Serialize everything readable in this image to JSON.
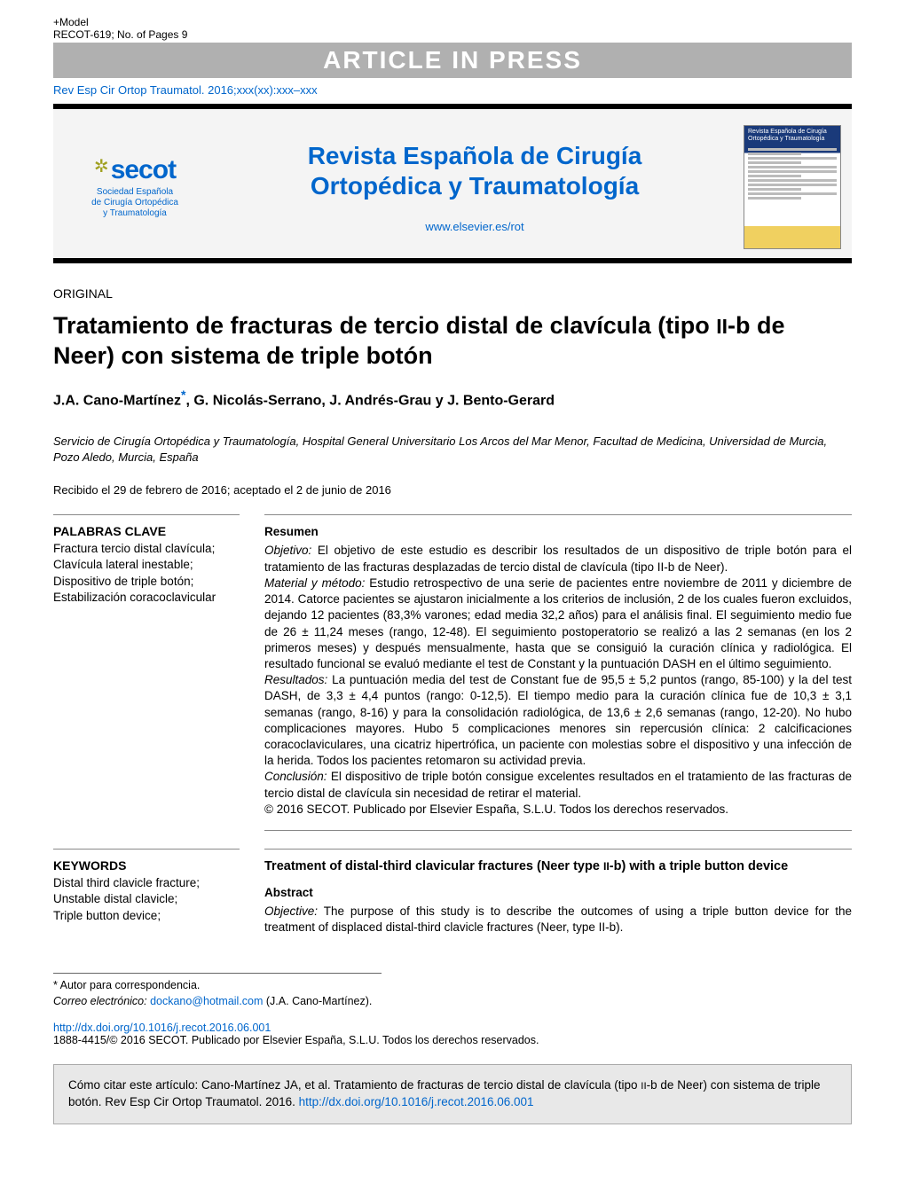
{
  "model_tag": "+Model",
  "model_ref": "RECOT-619;   No. of Pages 9",
  "banner": "ARTICLE IN PRESS",
  "short_cite": "Rev Esp Cir Ortop Traumatol. 2016;xxx(xx):xxx–xxx",
  "logo_text": "secot",
  "logo_subtitle": "Sociedad Española\nde Cirugía Ortopédica\ny Traumatología",
  "journal_title_1": "Revista Española de Cirugía",
  "journal_title_2": "Ortopédica y Traumatología",
  "journal_url": "www.elsevier.es/rot",
  "cover_heading": "Revista Española de Cirugía Ortopédica y Traumatología",
  "section_label": "ORIGINAL",
  "article_title": "Tratamiento de fracturas de tercio distal de clavícula (tipo II-b de Neer) con sistema de triple botón",
  "authors_html": "J.A. Cano-Martínez*, G. Nicolás-Serrano, J. Andrés-Grau y J. Bento-Gerard",
  "author_1": "J.A. Cano-Martínez",
  "author_2": "G. Nicolás-Serrano",
  "author_3": "J. Andrés-Grau",
  "author_4": "J. Bento-Gerard",
  "affiliation": "Servicio de Cirugía Ortopédica y Traumatología, Hospital General Universitario Los Arcos del Mar Menor, Facultad de Medicina, Universidad de Murcia, Pozo Aledo, Murcia, España",
  "dates": "Recibido el 29 de febrero de 2016; aceptado el 2 de junio de 2016",
  "kw_es_head": "PALABRAS CLAVE",
  "kw_es": "Fractura tercio distal clavícula;\nClavícula lateral inestable;\nDispositivo de triple botón;\nEstabilización coracoclavicular",
  "abs_es_head": "Resumen",
  "abs_es_obj_label": "Objetivo:",
  "abs_es_obj": " El objetivo de este estudio es describir los resultados de un dispositivo de triple botón para el tratamiento de las fracturas desplazadas de tercio distal de clavícula (tipo II-b de Neer).",
  "abs_es_mat_label": "Material y método:",
  "abs_es_mat": " Estudio retrospectivo de una serie de pacientes entre noviembre de 2011 y diciembre de 2014. Catorce pacientes se ajustaron inicialmente a los criterios de inclusión, 2 de los cuales fueron excluidos, dejando 12 pacientes (83,3% varones; edad media 32,2 años) para el análisis final. El seguimiento medio fue de 26 ± 11,24 meses (rango, 12-48). El seguimiento postoperatorio se realizó a las 2 semanas (en los 2 primeros meses) y después mensualmente, hasta que se consiguió la curación clínica y radiológica. El resultado funcional se evaluó mediante el test de Constant y la puntuación DASH en el último seguimiento.",
  "abs_es_res_label": "Resultados:",
  "abs_es_res": " La puntuación media del test de Constant fue de 95,5 ± 5,2 puntos (rango, 85-100) y la del test DASH, de 3,3 ± 4,4 puntos (rango: 0-12,5). El tiempo medio para la curación clínica fue de 10,3 ± 3,1 semanas (rango, 8-16) y para la consolidación radiológica, de 13,6 ± 2,6 semanas (rango, 12-20). No hubo complicaciones mayores. Hubo 5 complicaciones menores sin repercusión clínica: 2 calcificaciones coracoclaviculares, una cicatriz hipertrófica, un paciente con molestias sobre el dispositivo y una infección de la herida. Todos los pacientes retomaron su actividad previa.",
  "abs_es_con_label": "Conclusión:",
  "abs_es_con": " El dispositivo de triple botón consigue excelentes resultados en el tratamiento de las fracturas de tercio distal de clavícula sin necesidad de retirar el material.",
  "abs_es_copy": "© 2016 SECOT. Publicado por Elsevier España, S.L.U. Todos los derechos reservados.",
  "kw_en_head": "KEYWORDS",
  "kw_en": "Distal third clavicle fracture;\nUnstable distal clavicle;\nTriple button device;",
  "eng_title": "Treatment of distal-third clavicular fractures (Neer type II-b) with a triple button device",
  "abs_en_head": "Abstract",
  "abs_en_obj_label": "Objective:",
  "abs_en_obj": " The purpose of this study is to describe the outcomes of using a triple button device for the treatment of displaced distal-third clavicle fractures (Neer, type II-b).",
  "footnote_star": "* Autor para correspondencia.",
  "footnote_email_label": "Correo electrónico: ",
  "footnote_email": "dockano@hotmail.com",
  "footnote_email_tail": " (J.A. Cano-Martínez).",
  "doi_url": "http://dx.doi.org/10.1016/j.recot.2016.06.001",
  "issn_line": "1888-4415/© 2016 SECOT. Publicado por Elsevier España, S.L.U. Todos los derechos reservados.",
  "cite_box_pre": "Cómo citar este artículo: Cano-Martínez JA, et al. Tratamiento de fracturas de tercio distal de clavícula (tipo II-b de Neer) con sistema de triple botón. Rev Esp Cir Ortop Traumatol. 2016. ",
  "cite_box_link": "http://dx.doi.org/10.1016/j.recot.2016.06.001",
  "colors": {
    "link": "#0066cc",
    "banner_bg": "#b0b0b0",
    "black": "#000000",
    "header_bg": "#f4f4f4",
    "cite_bg": "#e8e8e8",
    "cover_top": "#1a3a7a",
    "cover_bottom": "#f0d060"
  }
}
